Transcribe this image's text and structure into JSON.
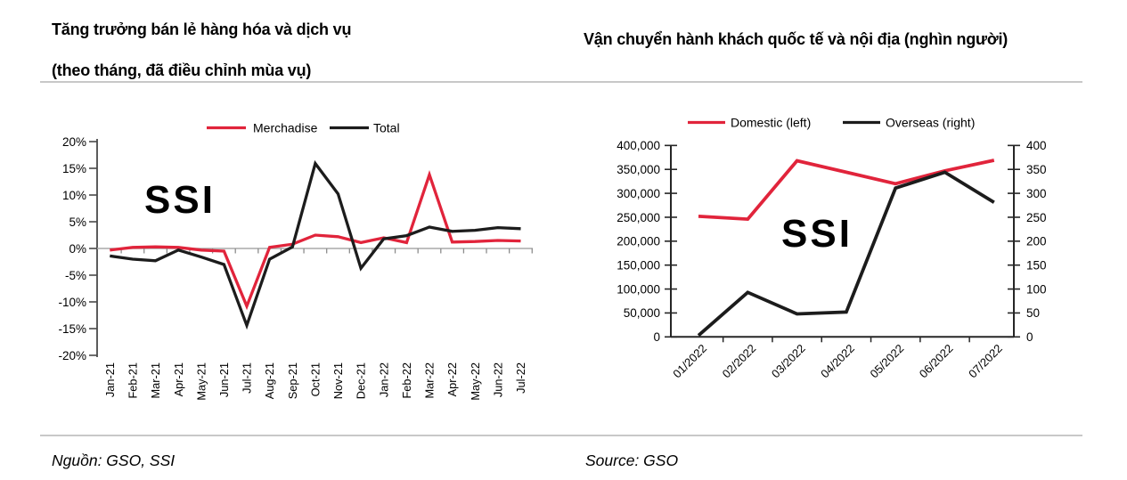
{
  "page": {
    "left_panel": {
      "title_line1": "Tăng trưởng bán lẻ hàng hóa và dịch vụ",
      "title_line2": "(theo tháng, đã điều chỉnh mùa vụ)",
      "source": "Nguồn: GSO, SSI"
    },
    "right_panel": {
      "title": "Vận chuyển hành khách quốc tế và nội địa (nghìn người)",
      "source": "Source: GSO"
    },
    "watermark": "SSI"
  },
  "colors": {
    "red": "#e1243b",
    "black": "#1c1c1c",
    "axis_dark": "#4a4a4a",
    "axis_strong": "#262626",
    "zero_line": "#a8a8a8",
    "tick_gray": "#8c8c8c",
    "rule": "#c8c8c8",
    "watermark": "#ededed"
  },
  "chart_data": [
    {
      "type": "line",
      "name": "retail-growth",
      "title": "Tăng trưởng bán lẻ hàng hóa và dịch vụ (theo tháng, đã điều chỉnh mùa vụ)",
      "categories": [
        "Jan-21",
        "Feb-21",
        "Mar-21",
        "Apr-21",
        "May-21",
        "Jun-21",
        "Jul-21",
        "Aug-21",
        "Sep-21",
        "Oct-21",
        "Nov-21",
        "Dec-21",
        "Jan-22",
        "Feb-22",
        "Mar-22",
        "Apr-22",
        "May-22",
        "Jun-22",
        "Jul-22"
      ],
      "series": [
        {
          "name": "Merchadise",
          "color_key": "red",
          "values": [
            -0.3,
            0.2,
            0.3,
            0.2,
            -0.3,
            -0.5,
            -10.8,
            0.2,
            0.8,
            2.5,
            2.2,
            1.1,
            2.0,
            1.1,
            13.8,
            1.2,
            1.3,
            1.5,
            1.4
          ]
        },
        {
          "name": "Total",
          "color_key": "black",
          "values": [
            -1.4,
            -2.0,
            -2.3,
            -0.3,
            -1.6,
            -3.0,
            -14.4,
            -2.0,
            0.3,
            15.9,
            10.2,
            -3.7,
            1.8,
            2.4,
            4.0,
            3.2,
            3.4,
            3.9,
            3.7
          ]
        }
      ],
      "ylim": [
        -20,
        20
      ],
      "ytick_step": 5,
      "ytick_suffix": "%",
      "legend_position": "top",
      "grid": false
    },
    {
      "type": "line",
      "name": "passenger-transport",
      "title": "Vận chuyển hành khách quốc tế và nội địa (nghìn người)",
      "categories": [
        "01/2022",
        "02/2022",
        "03/2022",
        "04/2022",
        "05/2022",
        "06/2022",
        "07/2022"
      ],
      "series": [
        {
          "name": "Domestic (left)",
          "axis": "left",
          "color_key": "red",
          "values": [
            252000,
            246000,
            368000,
            344000,
            320000,
            347000,
            369000
          ]
        },
        {
          "name": "Overseas (right)",
          "axis": "right",
          "color_key": "black",
          "values": [
            3,
            93,
            48,
            52,
            311,
            344,
            281
          ]
        }
      ],
      "left_axis": {
        "lim": [
          0,
          400000
        ],
        "tick_step": 50000,
        "format": "thousands"
      },
      "right_axis": {
        "lim": [
          0,
          400
        ],
        "tick_step": 50,
        "format": "plain"
      },
      "legend_position": "top",
      "grid": false
    }
  ]
}
